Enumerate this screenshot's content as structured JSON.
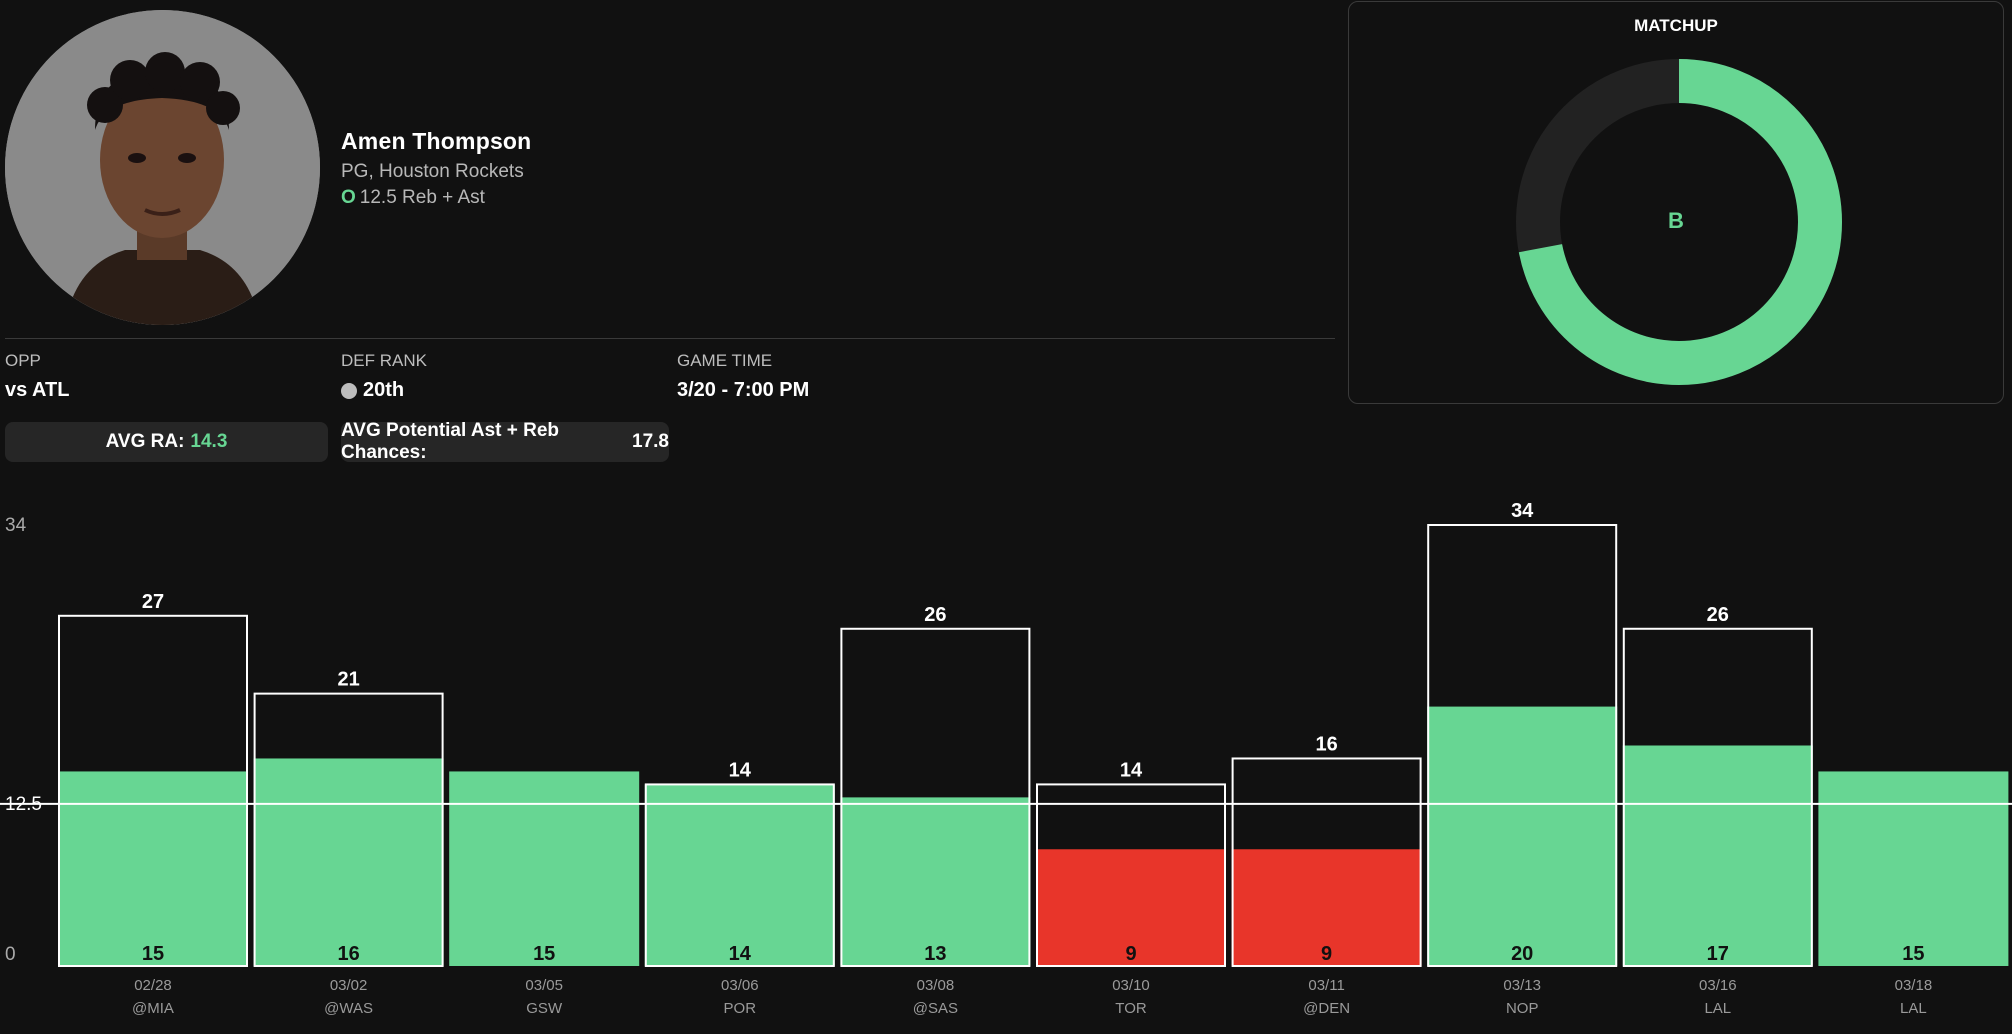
{
  "player": {
    "name": "Amen Thompson",
    "position_team": "PG, Houston Rockets",
    "ou_indicator": "O",
    "line_text": "12.5 Reb + Ast"
  },
  "meta": {
    "opp_label": "OPP",
    "opp_value": "vs ATL",
    "def_rank_label": "DEF RANK",
    "def_rank_value": "20th",
    "game_time_label": "GAME TIME",
    "game_time_value": "3/20 - 7:00 PM"
  },
  "stats": {
    "avg_ra_label": "AVG RA:",
    "avg_ra_value": "14.3",
    "avg_potential_label": "AVG Potential Ast + Reb Chances:",
    "avg_potential_value": "17.8"
  },
  "matchup": {
    "title": "MATCHUP",
    "grade": "B",
    "fill_fraction": 0.72,
    "color": "#67d693",
    "track_color": "#222222"
  },
  "colors": {
    "over": "#67d693",
    "under": "#e8352a",
    "outline": "#ffffff",
    "background": "#111111"
  },
  "chart_data": {
    "type": "bar",
    "title": "",
    "y_axis_labels": [
      "34",
      "12.5",
      "0"
    ],
    "ylim": [
      0,
      34
    ],
    "line": 12.5,
    "games": [
      {
        "date": "02/28",
        "opp": "@MIA",
        "value": 15,
        "potential": 27
      },
      {
        "date": "03/02",
        "opp": "@WAS",
        "value": 16,
        "potential": 21
      },
      {
        "date": "03/05",
        "opp": "GSW",
        "value": 15,
        "potential": null
      },
      {
        "date": "03/06",
        "opp": "POR",
        "value": 14,
        "potential": 14
      },
      {
        "date": "03/08",
        "opp": "@SAS",
        "value": 13,
        "potential": 26
      },
      {
        "date": "03/10",
        "opp": "TOR",
        "value": 9,
        "potential": 14
      },
      {
        "date": "03/11",
        "opp": "@DEN",
        "value": 9,
        "potential": 16
      },
      {
        "date": "03/13",
        "opp": "NOP",
        "value": 20,
        "potential": 34
      },
      {
        "date": "03/16",
        "opp": "LAL",
        "value": 17,
        "potential": 26
      },
      {
        "date": "03/18",
        "opp": "LAL",
        "value": 15,
        "potential": null
      }
    ]
  }
}
